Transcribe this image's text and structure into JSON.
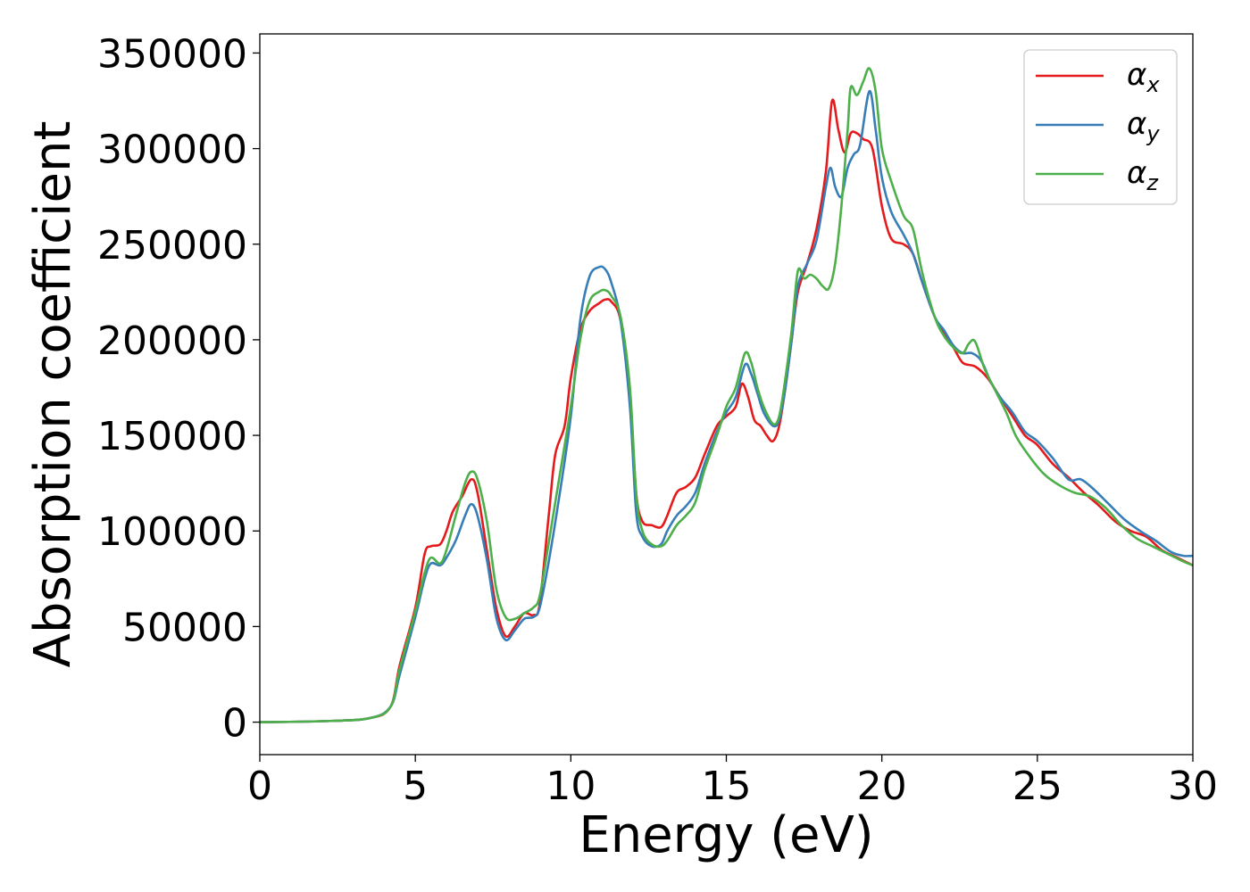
{
  "chart_data": {
    "type": "line",
    "xlabel": "Energy (eV)",
    "ylabel": "Absorption coefficient",
    "xlim": [
      0,
      30
    ],
    "ylim": [
      -17000,
      360000
    ],
    "x_ticks": [
      "0",
      "5",
      "10",
      "15",
      "20",
      "25",
      "30"
    ],
    "y_ticks": [
      "0",
      "50000",
      "100000",
      "150000",
      "200000",
      "250000",
      "300000",
      "350000"
    ],
    "legend_position": "top-right",
    "grid": false,
    "series": [
      {
        "name": "αx",
        "color": "#e41a1c",
        "points": [
          [
            0,
            0
          ],
          [
            2,
            500
          ],
          [
            3.5,
            2000
          ],
          [
            4.2,
            8000
          ],
          [
            4.5,
            30000
          ],
          [
            5.0,
            60000
          ],
          [
            5.3,
            88000
          ],
          [
            5.5,
            92000
          ],
          [
            5.8,
            93000
          ],
          [
            6.0,
            100000
          ],
          [
            6.2,
            110000
          ],
          [
            6.5,
            118000
          ],
          [
            6.8,
            127000
          ],
          [
            7.0,
            120000
          ],
          [
            7.3,
            90000
          ],
          [
            7.6,
            60000
          ],
          [
            7.9,
            45000
          ],
          [
            8.2,
            50000
          ],
          [
            8.5,
            57000
          ],
          [
            8.8,
            56000
          ],
          [
            9.0,
            62000
          ],
          [
            9.3,
            110000
          ],
          [
            9.5,
            140000
          ],
          [
            9.8,
            155000
          ],
          [
            10.0,
            180000
          ],
          [
            10.3,
            205000
          ],
          [
            10.6,
            215000
          ],
          [
            10.9,
            219000
          ],
          [
            11.1,
            221000
          ],
          [
            11.3,
            220000
          ],
          [
            11.6,
            210000
          ],
          [
            11.9,
            170000
          ],
          [
            12.1,
            120000
          ],
          [
            12.3,
            105000
          ],
          [
            12.6,
            103000
          ],
          [
            12.9,
            102000
          ],
          [
            13.1,
            108000
          ],
          [
            13.4,
            120000
          ],
          [
            13.7,
            123000
          ],
          [
            14.0,
            128000
          ],
          [
            14.3,
            140000
          ],
          [
            14.7,
            155000
          ],
          [
            15.0,
            160000
          ],
          [
            15.3,
            165000
          ],
          [
            15.5,
            177000
          ],
          [
            15.7,
            170000
          ],
          [
            15.9,
            158000
          ],
          [
            16.1,
            155000
          ],
          [
            16.3,
            150000
          ],
          [
            16.5,
            147000
          ],
          [
            16.7,
            155000
          ],
          [
            16.9,
            175000
          ],
          [
            17.1,
            200000
          ],
          [
            17.3,
            225000
          ],
          [
            17.6,
            240000
          ],
          [
            17.9,
            258000
          ],
          [
            18.2,
            288000
          ],
          [
            18.4,
            325000
          ],
          [
            18.6,
            310000
          ],
          [
            18.8,
            298000
          ],
          [
            19.0,
            308000
          ],
          [
            19.2,
            308000
          ],
          [
            19.4,
            305000
          ],
          [
            19.7,
            300000
          ],
          [
            20.0,
            270000
          ],
          [
            20.3,
            253000
          ],
          [
            20.7,
            250000
          ],
          [
            21.0,
            245000
          ],
          [
            21.3,
            230000
          ],
          [
            21.7,
            212000
          ],
          [
            22.0,
            203000
          ],
          [
            22.3,
            196000
          ],
          [
            22.6,
            188000
          ],
          [
            23.0,
            186000
          ],
          [
            23.4,
            180000
          ],
          [
            23.8,
            170000
          ],
          [
            24.2,
            160000
          ],
          [
            24.6,
            150000
          ],
          [
            25.0,
            145000
          ],
          [
            25.5,
            135000
          ],
          [
            26.0,
            128000
          ],
          [
            26.5,
            120000
          ],
          [
            27.0,
            113000
          ],
          [
            27.5,
            105000
          ],
          [
            28.0,
            100000
          ],
          [
            28.5,
            97000
          ],
          [
            29.0,
            90000
          ],
          [
            29.5,
            86000
          ],
          [
            30,
            82000
          ]
        ]
      },
      {
        "name": "αy",
        "color": "#377eb8",
        "points": [
          [
            0,
            0
          ],
          [
            2,
            500
          ],
          [
            3.5,
            2000
          ],
          [
            4.2,
            8000
          ],
          [
            4.5,
            25000
          ],
          [
            5.0,
            55000
          ],
          [
            5.3,
            75000
          ],
          [
            5.5,
            83000
          ],
          [
            5.8,
            82000
          ],
          [
            6.0,
            86000
          ],
          [
            6.3,
            95000
          ],
          [
            6.6,
            108000
          ],
          [
            6.8,
            114000
          ],
          [
            7.0,
            108000
          ],
          [
            7.3,
            85000
          ],
          [
            7.6,
            55000
          ],
          [
            7.9,
            43000
          ],
          [
            8.2,
            48000
          ],
          [
            8.5,
            54000
          ],
          [
            8.8,
            55000
          ],
          [
            9.0,
            60000
          ],
          [
            9.3,
            85000
          ],
          [
            9.6,
            115000
          ],
          [
            10.0,
            160000
          ],
          [
            10.3,
            210000
          ],
          [
            10.6,
            233000
          ],
          [
            10.9,
            238000
          ],
          [
            11.1,
            237000
          ],
          [
            11.3,
            230000
          ],
          [
            11.6,
            210000
          ],
          [
            11.9,
            165000
          ],
          [
            12.1,
            110000
          ],
          [
            12.3,
            97000
          ],
          [
            12.6,
            92000
          ],
          [
            12.9,
            93000
          ],
          [
            13.1,
            100000
          ],
          [
            13.4,
            108000
          ],
          [
            13.7,
            113000
          ],
          [
            14.0,
            120000
          ],
          [
            14.3,
            135000
          ],
          [
            14.7,
            152000
          ],
          [
            15.0,
            162000
          ],
          [
            15.3,
            170000
          ],
          [
            15.6,
            187000
          ],
          [
            15.8,
            182000
          ],
          [
            16.0,
            172000
          ],
          [
            16.2,
            162000
          ],
          [
            16.5,
            155000
          ],
          [
            16.7,
            158000
          ],
          [
            16.9,
            175000
          ],
          [
            17.1,
            200000
          ],
          [
            17.3,
            228000
          ],
          [
            17.6,
            240000
          ],
          [
            17.9,
            252000
          ],
          [
            18.2,
            280000
          ],
          [
            18.35,
            290000
          ],
          [
            18.5,
            280000
          ],
          [
            18.7,
            275000
          ],
          [
            18.9,
            290000
          ],
          [
            19.1,
            297000
          ],
          [
            19.3,
            302000
          ],
          [
            19.6,
            330000
          ],
          [
            19.8,
            310000
          ],
          [
            20.0,
            285000
          ],
          [
            20.3,
            267000
          ],
          [
            20.7,
            255000
          ],
          [
            21.0,
            245000
          ],
          [
            21.3,
            230000
          ],
          [
            21.7,
            212000
          ],
          [
            22.0,
            205000
          ],
          [
            22.3,
            197000
          ],
          [
            22.6,
            193000
          ],
          [
            22.9,
            193000
          ],
          [
            23.2,
            189000
          ],
          [
            23.5,
            178000
          ],
          [
            23.8,
            170000
          ],
          [
            24.2,
            162000
          ],
          [
            24.6,
            152000
          ],
          [
            25.0,
            147000
          ],
          [
            25.5,
            138000
          ],
          [
            26.0,
            127000
          ],
          [
            26.4,
            127000
          ],
          [
            26.8,
            122000
          ],
          [
            27.3,
            114000
          ],
          [
            27.8,
            106000
          ],
          [
            28.3,
            100000
          ],
          [
            28.8,
            95000
          ],
          [
            29.3,
            89000
          ],
          [
            29.7,
            87000
          ],
          [
            30,
            87000
          ]
        ]
      },
      {
        "name": "αz",
        "color": "#4daf4a",
        "points": [
          [
            0,
            0
          ],
          [
            2,
            500
          ],
          [
            3.5,
            2000
          ],
          [
            4.2,
            8000
          ],
          [
            4.5,
            28000
          ],
          [
            5.0,
            58000
          ],
          [
            5.3,
            78000
          ],
          [
            5.5,
            86000
          ],
          [
            5.8,
            83000
          ],
          [
            6.0,
            90000
          ],
          [
            6.3,
            108000
          ],
          [
            6.6,
            125000
          ],
          [
            6.8,
            131000
          ],
          [
            7.0,
            127000
          ],
          [
            7.3,
            105000
          ],
          [
            7.6,
            70000
          ],
          [
            7.9,
            55000
          ],
          [
            8.2,
            54000
          ],
          [
            8.5,
            57000
          ],
          [
            8.8,
            60000
          ],
          [
            9.0,
            66000
          ],
          [
            9.3,
            95000
          ],
          [
            9.6,
            125000
          ],
          [
            10.0,
            165000
          ],
          [
            10.3,
            200000
          ],
          [
            10.6,
            220000
          ],
          [
            10.9,
            225000
          ],
          [
            11.1,
            226000
          ],
          [
            11.3,
            223000
          ],
          [
            11.6,
            212000
          ],
          [
            11.9,
            175000
          ],
          [
            12.1,
            120000
          ],
          [
            12.3,
            100000
          ],
          [
            12.6,
            93000
          ],
          [
            12.9,
            92000
          ],
          [
            13.1,
            95000
          ],
          [
            13.4,
            103000
          ],
          [
            13.7,
            108000
          ],
          [
            14.0,
            115000
          ],
          [
            14.3,
            132000
          ],
          [
            14.7,
            150000
          ],
          [
            15.0,
            165000
          ],
          [
            15.3,
            175000
          ],
          [
            15.6,
            193000
          ],
          [
            15.8,
            188000
          ],
          [
            16.0,
            175000
          ],
          [
            16.2,
            165000
          ],
          [
            16.5,
            156000
          ],
          [
            16.7,
            160000
          ],
          [
            16.9,
            180000
          ],
          [
            17.1,
            205000
          ],
          [
            17.3,
            236000
          ],
          [
            17.5,
            232000
          ],
          [
            17.7,
            234000
          ],
          [
            17.9,
            232000
          ],
          [
            18.1,
            228000
          ],
          [
            18.3,
            227000
          ],
          [
            18.5,
            240000
          ],
          [
            18.7,
            270000
          ],
          [
            18.9,
            310000
          ],
          [
            19.0,
            332000
          ],
          [
            19.2,
            328000
          ],
          [
            19.4,
            335000
          ],
          [
            19.6,
            342000
          ],
          [
            19.8,
            330000
          ],
          [
            20.0,
            300000
          ],
          [
            20.3,
            283000
          ],
          [
            20.7,
            265000
          ],
          [
            21.0,
            258000
          ],
          [
            21.3,
            235000
          ],
          [
            21.7,
            212000
          ],
          [
            22.0,
            202000
          ],
          [
            22.3,
            196000
          ],
          [
            22.6,
            193000
          ],
          [
            22.8,
            198000
          ],
          [
            23.0,
            199000
          ],
          [
            23.3,
            185000
          ],
          [
            23.6,
            175000
          ],
          [
            24.0,
            162000
          ],
          [
            24.3,
            150000
          ],
          [
            24.7,
            140000
          ],
          [
            25.2,
            130000
          ],
          [
            25.7,
            124000
          ],
          [
            26.2,
            120000
          ],
          [
            26.7,
            118000
          ],
          [
            27.2,
            112000
          ],
          [
            27.7,
            103000
          ],
          [
            28.2,
            96000
          ],
          [
            28.7,
            92000
          ],
          [
            29.2,
            88000
          ],
          [
            29.7,
            84000
          ],
          [
            30,
            82000
          ]
        ]
      }
    ]
  }
}
